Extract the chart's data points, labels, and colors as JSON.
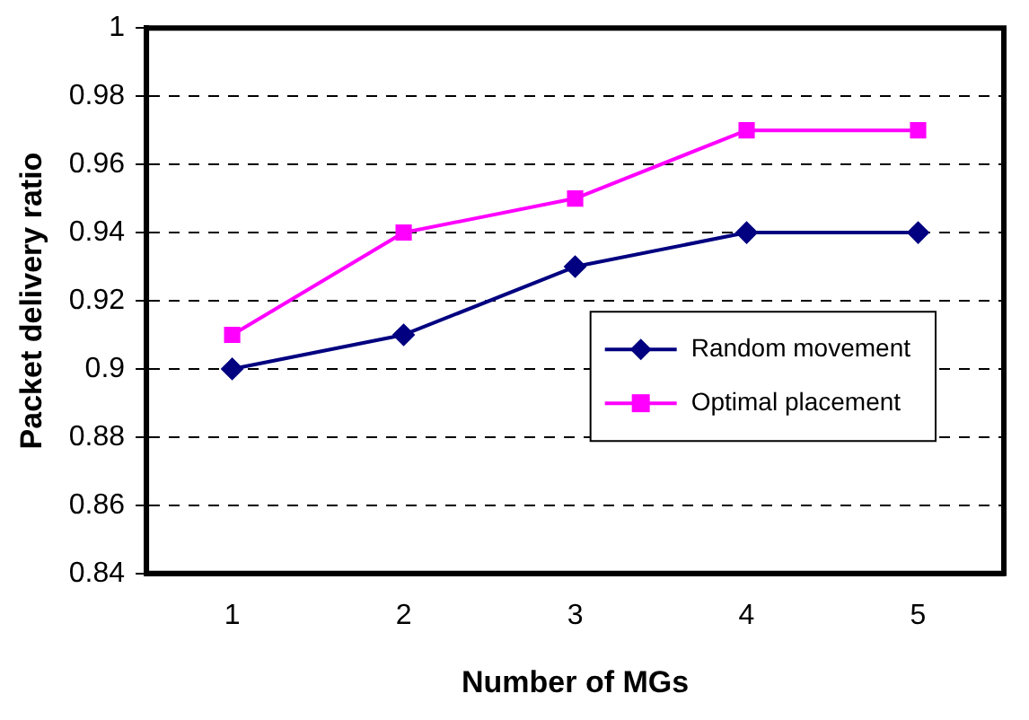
{
  "chart_data": {
    "type": "line",
    "xlabel": "Number of MGs",
    "ylabel": "Packet delivery ratio",
    "categories": [
      "1",
      "2",
      "3",
      "4",
      "5"
    ],
    "series": [
      {
        "name": "Random movement",
        "color": "#000080",
        "marker": "diamond",
        "values": [
          0.9,
          0.91,
          0.93,
          0.94,
          0.94
        ]
      },
      {
        "name": "Optimal placement",
        "color": "#ff00ff",
        "marker": "square",
        "values": [
          0.91,
          0.94,
          0.95,
          0.97,
          0.97
        ]
      }
    ],
    "ylim": [
      0.84,
      1
    ],
    "yticks": [
      0.84,
      0.86,
      0.88,
      0.9,
      0.92,
      0.94,
      0.96,
      0.98,
      1
    ],
    "grid": "y",
    "line_style": "solid",
    "legend": "right"
  }
}
